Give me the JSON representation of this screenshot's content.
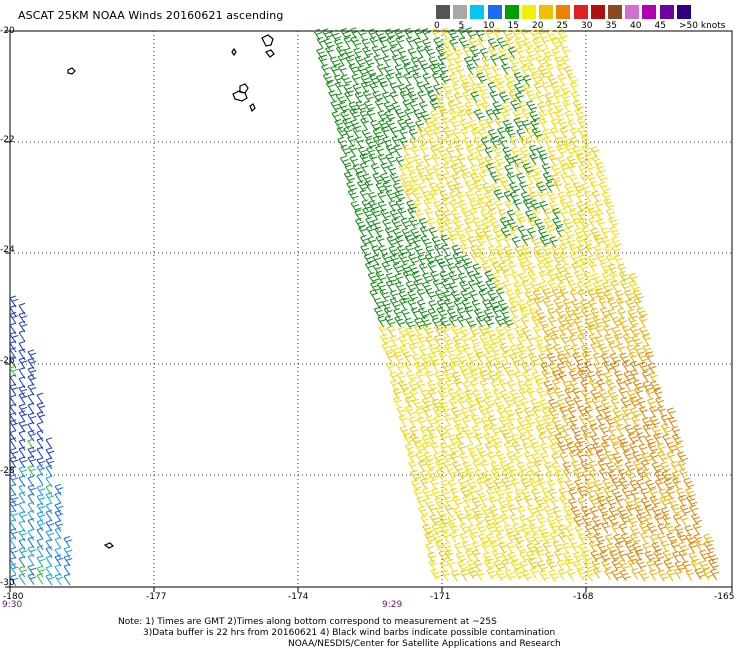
{
  "title": "ASCAT 25KM NOAA Winds 20160621 ascending",
  "legend": {
    "colors": [
      "#555555",
      "#a8a8a8",
      "#00c8f0",
      "#1a6cf0",
      "#00a000",
      "#f0f000",
      "#f0c000",
      "#f08000",
      "#e02020",
      "#b01010",
      "#8a4a20",
      "#d070d0",
      "#b000b0",
      "#7000a0",
      "#300080"
    ],
    "labels": [
      "0",
      "5",
      "10",
      "15",
      "20",
      "25",
      "30",
      "35",
      "40",
      "45",
      ">50 knots"
    ]
  },
  "map": {
    "lat_labels": [
      "-20",
      "-22",
      "-24",
      "-26",
      "-28",
      "-30"
    ],
    "lon_labels": [
      "-180",
      "-177",
      "-174",
      "-171",
      "-168",
      "-165"
    ],
    "lat_range": [
      -30,
      -20
    ],
    "lon_range": [
      -180,
      -165
    ],
    "grid": true,
    "time_labels": [
      "9:30",
      "9:29"
    ]
  },
  "notes": {
    "line1": "Note: 1) Times are GMT 2)Times along bottom correspond to measurement at ~25S",
    "line2": "3)Data buffer is 22 hrs from 20160621 4) Black wind barbs indicate possible contamination",
    "line3": "NOAA/NESDIS/Center for Satellite Applications and Research"
  }
}
